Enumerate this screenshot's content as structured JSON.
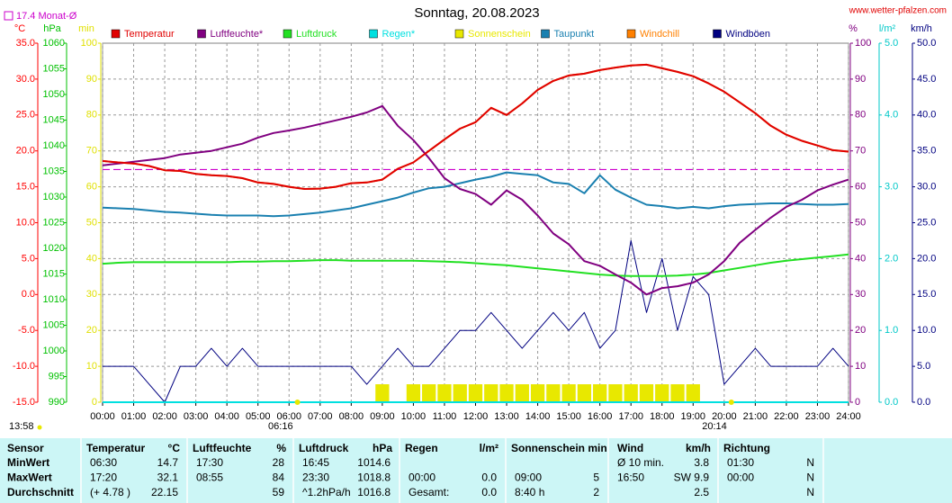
{
  "chart_data": {
    "type": "line",
    "title": "Sonntag, 20.08.2023",
    "source": "www.wetter-pfalzen.com",
    "updated": "13:58",
    "monthly_mean": {
      "label": "17.4 Monat-Ø",
      "value": 17.4,
      "axis": "temp",
      "color": "#cc00cc"
    },
    "sunrise": {
      "label": "06:16",
      "x": 6.27
    },
    "sunset": {
      "label": "20:14",
      "x": 20.23
    },
    "grid": true,
    "xlim": [
      0,
      24
    ],
    "xticks": [
      {
        "value": 0,
        "label": "00:00"
      },
      {
        "value": 1,
        "label": "01:00"
      },
      {
        "value": 2,
        "label": "02:00"
      },
      {
        "value": 3,
        "label": "03:00"
      },
      {
        "value": 4,
        "label": "04:00"
      },
      {
        "value": 5,
        "label": "05:00"
      },
      {
        "value": 6,
        "label": "06:00"
      },
      {
        "value": 7,
        "label": "07:00"
      },
      {
        "value": 8,
        "label": "08:00"
      },
      {
        "value": 9,
        "label": "09:00"
      },
      {
        "value": 10,
        "label": "10:00"
      },
      {
        "value": 11,
        "label": "11:00"
      },
      {
        "value": 12,
        "label": "12:00"
      },
      {
        "value": 13,
        "label": "13:00"
      },
      {
        "value": 14,
        "label": "14:00"
      },
      {
        "value": 15,
        "label": "15:00"
      },
      {
        "value": 16,
        "label": "16:00"
      },
      {
        "value": 17,
        "label": "17:00"
      },
      {
        "value": 18,
        "label": "18:00"
      },
      {
        "value": 19,
        "label": "19:00"
      },
      {
        "value": 20,
        "label": "20:00"
      },
      {
        "value": 21,
        "label": "21:00"
      },
      {
        "value": 22,
        "label": "22:00"
      },
      {
        "value": 23,
        "label": "23:00"
      },
      {
        "value": 24,
        "label": "24:00"
      }
    ],
    "axes": {
      "temp": {
        "label": "°C",
        "color": "#ff0000",
        "ylim": [
          -15,
          35
        ],
        "yticks": [
          {
            "value": 35,
            "label": "35.0"
          },
          {
            "value": 30,
            "label": "30.0"
          },
          {
            "value": 25,
            "label": "25.0"
          },
          {
            "value": 20,
            "label": "20.0"
          },
          {
            "value": 15,
            "label": "15.0"
          },
          {
            "value": 10,
            "label": "10.0"
          },
          {
            "value": 5,
            "label": "5.0"
          },
          {
            "value": 0,
            "label": "0.0"
          },
          {
            "value": -5,
            "label": "-5.0"
          },
          {
            "value": -10,
            "label": "-10.0"
          },
          {
            "value": -15,
            "label": "-15.0"
          }
        ]
      },
      "pressure": {
        "label": "hPa",
        "color": "#00c000",
        "ylim": [
          990,
          1060
        ],
        "yticks": [
          1060,
          1055,
          1050,
          1045,
          1040,
          1035,
          1030,
          1025,
          1020,
          1015,
          1010,
          1005,
          1000,
          995,
          990
        ]
      },
      "minutes": {
        "label": "min",
        "color": "#e0e000",
        "ylim": [
          0,
          100
        ],
        "yticks": [
          100,
          90,
          80,
          70,
          60,
          50,
          40,
          30,
          20,
          10,
          0
        ]
      },
      "humidity": {
        "label": "%",
        "color": "#800080",
        "ylim": [
          0,
          100
        ],
        "yticks": [
          100,
          90,
          80,
          70,
          60,
          50,
          40,
          30,
          20,
          10,
          0
        ]
      },
      "rain": {
        "label": "l/m²",
        "color": "#00c8c8",
        "ylim": [
          0,
          5
        ],
        "yticks": [
          {
            "value": 5,
            "label": "5.0"
          },
          {
            "value": 4,
            "label": "4.0"
          },
          {
            "value": 3,
            "label": "3.0"
          },
          {
            "value": 2,
            "label": "2.0"
          },
          {
            "value": 1,
            "label": "1.0"
          },
          {
            "value": 0,
            "label": "0.0"
          }
        ]
      },
      "wind": {
        "label": "km/h",
        "color": "#000080",
        "ylim": [
          0,
          50
        ],
        "yticks": [
          {
            "value": 50,
            "label": "50.0"
          },
          {
            "value": 45,
            "label": "45.0"
          },
          {
            "value": 40,
            "label": "40.0"
          },
          {
            "value": 35,
            "label": "35.0"
          },
          {
            "value": 30,
            "label": "30.0"
          },
          {
            "value": 25,
            "label": "25.0"
          },
          {
            "value": 20,
            "label": "20.0"
          },
          {
            "value": 15,
            "label": "15.0"
          },
          {
            "value": 10,
            "label": "10.0"
          },
          {
            "value": 5,
            "label": "5.0"
          },
          {
            "value": 0,
            "label": "0.0"
          }
        ]
      }
    },
    "x": [
      0,
      0.5,
      1,
      1.5,
      2,
      2.5,
      3,
      3.5,
      4,
      4.5,
      5,
      5.5,
      6,
      6.5,
      7,
      7.5,
      8,
      8.5,
      9,
      9.5,
      10,
      10.5,
      11,
      11.5,
      12,
      12.5,
      13,
      13.5,
      14,
      14.5,
      15,
      15.5,
      16,
      16.5,
      17,
      17.5,
      18,
      18.5,
      19,
      19.5,
      20,
      20.5,
      21,
      21.5,
      22,
      22.5,
      23,
      23.5,
      24
    ],
    "series": [
      {
        "name": "Temperatur",
        "color": "#e00000",
        "axis": "temp",
        "values": [
          18.6,
          18.4,
          18.25,
          17.9,
          17.3,
          17.2,
          16.8,
          16.6,
          16.5,
          16.2,
          15.6,
          15.4,
          15.0,
          14.7,
          14.75,
          15.0,
          15.5,
          15.6,
          16.0,
          17.5,
          18.4,
          20.0,
          21.6,
          23.1,
          24.0,
          26.0,
          25.0,
          26.6,
          28.5,
          29.75,
          30.5,
          30.75,
          31.25,
          31.6,
          31.9,
          32.0,
          31.5,
          31.0,
          30.4,
          29.4,
          28.25,
          26.75,
          25.25,
          23.5,
          22.25,
          21.4,
          20.75,
          20.1,
          19.9
        ]
      },
      {
        "name": "Luftfeuchte*",
        "color": "#800080",
        "axis": "humidity",
        "values": [
          66,
          66.5,
          67,
          67.5,
          68,
          69,
          69.5,
          70,
          71,
          72,
          73.7,
          75,
          75.7,
          76.5,
          77.5,
          78.5,
          79.5,
          80.7,
          82.5,
          77,
          73,
          68,
          62.4,
          59.4,
          58,
          55,
          59,
          56.4,
          52,
          47,
          44,
          39.3,
          38,
          35.6,
          33.3,
          30,
          31.8,
          32.3,
          33.3,
          35.6,
          39.3,
          44.4,
          48,
          51.4,
          54.4,
          56.4,
          59,
          60.6,
          62
        ]
      },
      {
        "name": "Luftdruck",
        "color": "#22e022",
        "axis": "pressure",
        "values": [
          1017.0,
          1017.2,
          1017.3,
          1017.3,
          1017.3,
          1017.3,
          1017.3,
          1017.3,
          1017.3,
          1017.4,
          1017.4,
          1017.5,
          1017.5,
          1017.6,
          1017.7,
          1017.7,
          1017.6,
          1017.6,
          1017.6,
          1017.6,
          1017.6,
          1017.5,
          1017.4,
          1017.3,
          1017.1,
          1016.9,
          1016.7,
          1016.4,
          1016.1,
          1015.8,
          1015.5,
          1015.2,
          1014.9,
          1014.7,
          1014.6,
          1014.6,
          1014.6,
          1014.7,
          1014.9,
          1015.2,
          1015.7,
          1016.2,
          1016.7,
          1017.2,
          1017.6,
          1017.9,
          1018.2,
          1018.5,
          1018.8
        ]
      },
      {
        "name": "Regen*",
        "color": "#00e0e0",
        "axis": "rain",
        "values": [
          0,
          0,
          0,
          0,
          0,
          0,
          0,
          0,
          0,
          0,
          0,
          0,
          0,
          0,
          0,
          0,
          0,
          0,
          0,
          0,
          0,
          0,
          0,
          0,
          0,
          0,
          0,
          0,
          0,
          0,
          0,
          0,
          0,
          0,
          0,
          0,
          0,
          0,
          0,
          0,
          0,
          0,
          0,
          0,
          0,
          0,
          0,
          0,
          0
        ]
      },
      {
        "name": "Sonnenschein",
        "color": "#e8e800",
        "axis": "minutes",
        "draw": "bars",
        "values": [
          0,
          0,
          0,
          0,
          0,
          0,
          0,
          0,
          0,
          0,
          0,
          0,
          0,
          0,
          0,
          0,
          0,
          0,
          5,
          0,
          5,
          5,
          5,
          5,
          5,
          5,
          5,
          5,
          5,
          5,
          5,
          5,
          5,
          5,
          5,
          5,
          5,
          5,
          5,
          0,
          0,
          0,
          0,
          0,
          0,
          0,
          0,
          0,
          0
        ]
      },
      {
        "name": "Taupunkt",
        "color": "#1a80b0",
        "axis": "temp",
        "values": [
          12.1,
          12.0,
          11.9,
          11.7,
          11.5,
          11.4,
          11.25,
          11.1,
          11.0,
          11.0,
          11.0,
          10.9,
          11.0,
          11.2,
          11.4,
          11.7,
          12.0,
          12.5,
          13.0,
          13.5,
          14.2,
          14.8,
          15.0,
          15.5,
          16.0,
          16.4,
          17.0,
          16.8,
          16.6,
          15.6,
          15.4,
          14.1,
          16.6,
          14.6,
          13.5,
          12.5,
          12.3,
          12.0,
          12.2,
          12.0,
          12.3,
          12.5,
          12.6,
          12.7,
          12.7,
          12.6,
          12.5,
          12.5,
          12.6
        ]
      },
      {
        "name": "Windchill",
        "color": "#ff8000",
        "axis": "temp",
        "values": [
          18.6,
          18.4,
          18.25,
          17.9,
          17.3,
          17.2,
          16.8,
          16.6,
          16.5,
          16.2,
          15.6,
          15.4,
          15.0,
          14.7,
          14.75,
          15.0,
          15.5,
          15.6,
          16.0,
          17.5,
          18.4,
          20.0,
          21.6,
          23.1,
          24.0,
          26.0,
          25.0,
          26.6,
          28.5,
          29.75,
          30.5,
          30.75,
          31.25,
          31.6,
          31.9,
          32.0,
          31.5,
          31.0,
          30.4,
          29.4,
          28.25,
          26.75,
          25.25,
          23.5,
          22.25,
          21.4,
          20.75,
          20.1,
          19.9
        ]
      },
      {
        "name": "Windböen",
        "color": "#000080",
        "axis": "wind",
        "values": [
          5,
          5,
          5,
          2.5,
          0,
          5,
          5,
          7.5,
          5,
          7.5,
          5,
          5,
          5,
          5,
          5,
          5,
          5,
          2.5,
          5,
          7.5,
          5,
          5,
          7.5,
          10,
          10,
          12.5,
          10,
          7.5,
          10,
          12.5,
          10,
          12.5,
          7.5,
          10,
          22.5,
          12.5,
          20,
          10,
          17.5,
          15,
          2.5,
          5,
          7.5,
          5,
          5,
          5,
          5,
          7.5,
          5
        ]
      }
    ]
  },
  "table": {
    "header": [
      "Sensor",
      "Temperatur",
      "°C",
      "Luftfeuchte",
      "%",
      "Luftdruck",
      "hPa",
      "Regen",
      "l/m²",
      "Sonnenschein min",
      "Wind",
      "km/h",
      "Richtung"
    ],
    "rows": [
      {
        "label": "MinWert",
        "cells": [
          "06:30",
          "14.7",
          "17:30",
          "28",
          "16:45",
          "1014.6",
          null,
          null,
          null,
          null,
          "Ø 10 min.",
          "3.8",
          "01:30",
          "N"
        ]
      },
      {
        "label": "MaxWert",
        "cells": [
          "17:20",
          "32.1",
          "08:55",
          "84",
          "23:30",
          "1018.8",
          "00:00",
          "0.0",
          "09:00",
          "5",
          "16:50",
          "SW 9.9",
          "00:00",
          "N"
        ]
      },
      {
        "label": "Durchschnitt",
        "cells": [
          "(+ 4.78 )",
          "22.15",
          null,
          "59",
          "^1.2hPa/h",
          "1016.8",
          "Gesamt:",
          "0.0",
          "8:40 h",
          "2",
          null,
          "2.5",
          null,
          "N"
        ]
      }
    ]
  }
}
